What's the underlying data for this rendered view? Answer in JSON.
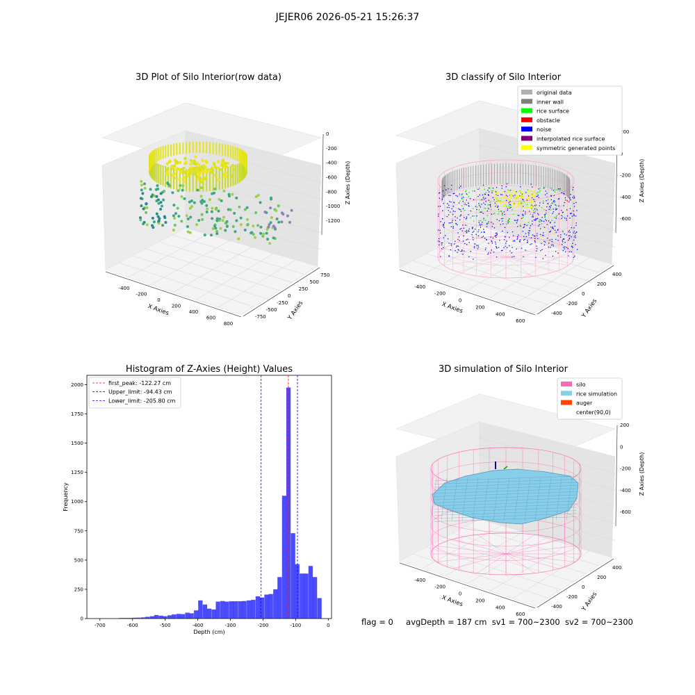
{
  "suptitle": "JEJER06 2026-05-21 15:26:37",
  "panel1": {
    "title": "3D Plot of Silo Interior(row data)",
    "xlabel": "X Axies",
    "ylabel": "Y Axies",
    "zlabel": "Z Axies (Depth)",
    "xticks": [
      "-400",
      "-200",
      "0",
      "200",
      "400",
      "600",
      "800"
    ],
    "yticks": [
      "750",
      "500",
      "250",
      "0",
      "-250",
      "-500",
      "-750"
    ],
    "zticks": [
      "0",
      "-200",
      "-400",
      "-600",
      "-800",
      "-1000",
      "-1200"
    ]
  },
  "panel2": {
    "title": "3D classify of Silo Interior",
    "xlabel": "X Axies",
    "ylabel": "Y Axies",
    "zlabel": "Z Axies (Depth)",
    "xticks": [
      "-400",
      "-200",
      "0",
      "200",
      "400",
      "600"
    ],
    "yticks": [
      "400",
      "200",
      "0",
      "-200",
      "-400"
    ],
    "zticks": [
      "200",
      "0",
      "-200",
      "-400",
      "-600"
    ],
    "legend": [
      {
        "label": "original data",
        "color": "#b0b0b0"
      },
      {
        "label": "inner wall",
        "color": "#808080"
      },
      {
        "label": "rice surface",
        "color": "#00ff00"
      },
      {
        "label": "obstacle",
        "color": "#ff0000"
      },
      {
        "label": "noise",
        "color": "#0000ff"
      },
      {
        "label": "interpolated rice surface",
        "color": "#800080"
      },
      {
        "label": "symmetric generated points",
        "color": "#ffff00"
      }
    ]
  },
  "panel4": {
    "title": "3D simulation of Silo Interior",
    "xlabel": "X Axies",
    "ylabel": "Y Axies",
    "zlabel": "Z Axies (Depth)",
    "xticks": [
      "-400",
      "-200",
      "0",
      "200",
      "400",
      "600"
    ],
    "yticks": [
      "400",
      "200",
      "0",
      "-200",
      "-400"
    ],
    "zticks": [
      "200",
      "0",
      "-200",
      "-400",
      "-600"
    ],
    "legend": [
      {
        "label": "silo",
        "color": "#ff69b4"
      },
      {
        "label": "rice simulation",
        "color": "#87ceeb"
      },
      {
        "label": "auger",
        "color": "#ff4500"
      },
      {
        "label": "center(90,0)",
        "color": ""
      }
    ]
  },
  "footer": {
    "flag": "flag = 0",
    "avg": "avgDepth = 187 cm",
    "sv1": "sv1 = 700~2300",
    "sv2": "sv2 = 700~2300"
  },
  "chart_data": [
    {
      "type": "bar",
      "title": "Histogram of Z-Axies (Height) Values",
      "xlabel": "Depth (cm)",
      "ylabel": "Frequency",
      "xlim": [
        -740,
        10
      ],
      "ylim": [
        0,
        2080
      ],
      "xticks": [
        -700,
        -600,
        -500,
        -400,
        -300,
        -200,
        -100,
        0
      ],
      "yticks": [
        0,
        250,
        500,
        750,
        1000,
        1250,
        1500,
        1750,
        2000
      ],
      "bar_color": "#0000ff",
      "bin_width": 13.5,
      "bins": [
        {
          "x": -635,
          "count": 5
        },
        {
          "x": -621,
          "count": 5
        },
        {
          "x": -608,
          "count": 5
        },
        {
          "x": -594,
          "count": 7
        },
        {
          "x": -581,
          "count": 8
        },
        {
          "x": -567,
          "count": 10
        },
        {
          "x": -554,
          "count": 15
        },
        {
          "x": -540,
          "count": 20
        },
        {
          "x": -527,
          "count": 30
        },
        {
          "x": -513,
          "count": 25
        },
        {
          "x": -500,
          "count": 20
        },
        {
          "x": -486,
          "count": 28
        },
        {
          "x": -473,
          "count": 35
        },
        {
          "x": -459,
          "count": 40
        },
        {
          "x": -446,
          "count": 38
        },
        {
          "x": -432,
          "count": 50
        },
        {
          "x": -419,
          "count": 45
        },
        {
          "x": -405,
          "count": 70
        },
        {
          "x": -392,
          "count": 155
        },
        {
          "x": -378,
          "count": 120
        },
        {
          "x": -365,
          "count": 85
        },
        {
          "x": -351,
          "count": 78
        },
        {
          "x": -338,
          "count": 145
        },
        {
          "x": -324,
          "count": 150
        },
        {
          "x": -311,
          "count": 145
        },
        {
          "x": -297,
          "count": 148
        },
        {
          "x": -284,
          "count": 148
        },
        {
          "x": -270,
          "count": 148
        },
        {
          "x": -257,
          "count": 150
        },
        {
          "x": -243,
          "count": 155
        },
        {
          "x": -230,
          "count": 160
        },
        {
          "x": -216,
          "count": 190
        },
        {
          "x": -203,
          "count": 180
        },
        {
          "x": -189,
          "count": 205
        },
        {
          "x": -176,
          "count": 210
        },
        {
          "x": -162,
          "count": 250
        },
        {
          "x": -149,
          "count": 355
        },
        {
          "x": -135,
          "count": 1050
        },
        {
          "x": -122,
          "count": 1975
        },
        {
          "x": -108,
          "count": 730
        },
        {
          "x": -95,
          "count": 465
        },
        {
          "x": -81,
          "count": 385
        },
        {
          "x": -68,
          "count": 385
        },
        {
          "x": -54,
          "count": 450
        },
        {
          "x": -41,
          "count": 355
        },
        {
          "x": -27,
          "count": 175
        }
      ],
      "vlines": [
        {
          "label": "first_peak: -122.27 cm",
          "x": -122.27,
          "color": "#ff0000"
        },
        {
          "label": "Upper_limit: -94.43 cm",
          "x": -94.43,
          "color": "#0000ff"
        },
        {
          "label": "Lower_limit: -205.80 cm",
          "x": -205.8,
          "color": "#0000ff"
        }
      ]
    }
  ]
}
